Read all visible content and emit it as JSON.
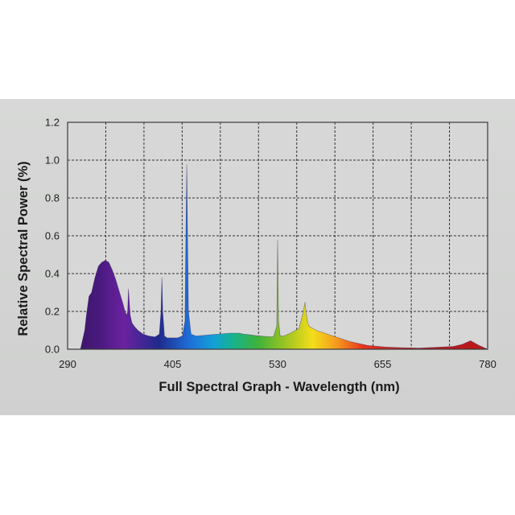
{
  "chart_data": {
    "type": "area",
    "title": "",
    "xlabel": "Full Spectral Graph - Wavelength (nm)",
    "ylabel": "Relative Spectral Power (%)",
    "xlim": [
      290,
      780
    ],
    "ylim": [
      0,
      1.2
    ],
    "x_ticks": [
      "290",
      "405",
      "530",
      "655",
      "780"
    ],
    "y_ticks": [
      "0.0",
      "0.2",
      "0.4",
      "0.6",
      "0.8",
      "1.0",
      "1.2"
    ],
    "grid": true,
    "series": [
      {
        "x": [
          305,
          310,
          312,
          315,
          318,
          322,
          326,
          330,
          334,
          338,
          342,
          346,
          350,
          354,
          357,
          359,
          360,
          361,
          363,
          365,
          368,
          372,
          378,
          385,
          392,
          397,
          399,
          400,
          401,
          403,
          406,
          412,
          418,
          424,
          427,
          428,
          429,
          431,
          434,
          440,
          460,
          480,
          490,
          495,
          500,
          505,
          510,
          520,
          530,
          534,
          535,
          536,
          538,
          542,
          550,
          560,
          565,
          567,
          568,
          570,
          572,
          580,
          600,
          620,
          640,
          660,
          680,
          700,
          720,
          740,
          750,
          760,
          770,
          780
        ],
        "y": [
          0.0,
          0.1,
          0.18,
          0.28,
          0.3,
          0.38,
          0.44,
          0.46,
          0.47,
          0.46,
          0.42,
          0.37,
          0.31,
          0.25,
          0.2,
          0.18,
          0.2,
          0.32,
          0.18,
          0.14,
          0.12,
          0.1,
          0.08,
          0.07,
          0.065,
          0.08,
          0.2,
          0.38,
          0.2,
          0.07,
          0.06,
          0.06,
          0.06,
          0.07,
          0.15,
          0.6,
          0.98,
          0.2,
          0.08,
          0.07,
          0.078,
          0.085,
          0.085,
          0.08,
          0.078,
          0.075,
          0.072,
          0.068,
          0.065,
          0.12,
          0.58,
          0.15,
          0.07,
          0.07,
          0.085,
          0.11,
          0.2,
          0.25,
          0.2,
          0.14,
          0.12,
          0.1,
          0.07,
          0.04,
          0.02,
          0.012,
          0.008,
          0.006,
          0.01,
          0.015,
          0.025,
          0.045,
          0.02,
          0.0
        ]
      }
    ],
    "colors": {
      "background": "#d3d4d3",
      "gridline": "#333333",
      "border": "#3a3a3a",
      "spectrum": [
        "#3b1466",
        "#4a1a80",
        "#6a22a0",
        "#1f2a8c",
        "#1e6ed8",
        "#12a0d8",
        "#17b38a",
        "#3fb23a",
        "#9cc421",
        "#f4dd1a",
        "#f59a1c",
        "#e8301e",
        "#b81a1c"
      ]
    }
  }
}
